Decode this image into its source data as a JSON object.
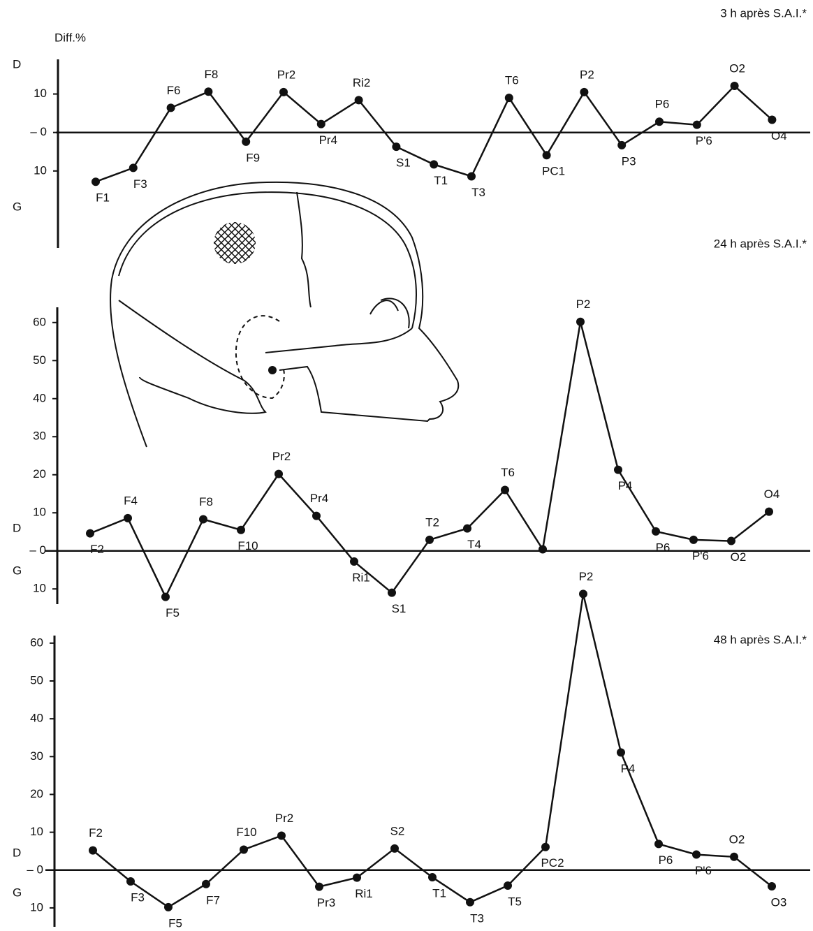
{
  "chart_data": [
    {
      "type": "line",
      "title": "3 h après S.A.I.*",
      "y_label": "Diff.%",
      "y_label_top": "D",
      "y_label_bottom": "G",
      "categories": [
        "F1",
        "F3",
        "F6",
        "F8",
        "F9",
        "Pr2",
        "Pr4",
        "Ri2",
        "S1",
        "T1",
        "T3",
        "T6",
        "PC1",
        "P2",
        "P3",
        "P6",
        "P'6",
        "O2",
        "O4"
      ],
      "values": [
        -12.8,
        -9.2,
        6.4,
        10.6,
        -2.4,
        10.5,
        2.2,
        8.4,
        -3.7,
        -8.3,
        -11.4,
        9,
        -5.9,
        10.5,
        -3.3,
        2.8,
        2,
        12.1,
        3.3
      ],
      "color": "#111111",
      "ylim": [
        -30,
        19
      ],
      "yticks": [
        10,
        {
          "value": 0,
          "label": "– 0"
        },
        {
          "value": -10,
          "label": "10"
        }
      ]
    },
    {
      "type": "line",
      "title": "24 h après S.A.I.*",
      "y_label_top": "D",
      "y_label_bottom": "G",
      "categories": [
        "F2",
        "F4",
        "F5",
        "F8",
        "F10",
        "Pr2",
        "Pr4",
        "Ri1",
        "S1",
        "T2",
        "T4",
        "T6",
        null,
        "P2",
        "P4",
        "P6",
        "P'6",
        "O2",
        "O4"
      ],
      "values": [
        4.6,
        8.6,
        -12.1,
        8.3,
        5.5,
        20.2,
        9.2,
        -2.8,
        -11,
        2.9,
        5.9,
        16,
        0.4,
        60.2,
        21.3,
        5.1,
        2.9,
        2.6,
        10.3
      ],
      "color": "#111111",
      "ylim": [
        -14,
        64
      ],
      "yticks": [
        60,
        50,
        40,
        30,
        20,
        10,
        {
          "value": 0,
          "label": "– 0"
        },
        {
          "value": -10,
          "label": "10"
        }
      ]
    },
    {
      "type": "line",
      "title": "48 h après S.A.I.*",
      "y_label_top": "D",
      "y_label_bottom": "G",
      "categories": [
        "F2",
        "F3",
        "F5",
        "F7",
        "F10",
        "Pr2",
        "Pr3",
        "Ri1",
        "S2",
        "T1",
        "T3",
        "T5",
        "PC2",
        "P2",
        "P4",
        "P6",
        "P'6",
        "O2",
        "O3"
      ],
      "values": [
        5.2,
        -3,
        -9.8,
        -3.7,
        5.4,
        9.1,
        -4.4,
        -2,
        5.7,
        -1.9,
        -8.5,
        -4.1,
        6.1,
        73,
        31.1,
        6.9,
        4.1,
        3.5,
        -4.3
      ],
      "color": "#111111",
      "ylim": [
        -15,
        62
      ],
      "yticks": [
        60,
        50,
        40,
        30,
        20,
        10,
        {
          "value": 0,
          "label": "– 0"
        },
        {
          "value": -10,
          "label": "10"
        }
      ]
    }
  ]
}
